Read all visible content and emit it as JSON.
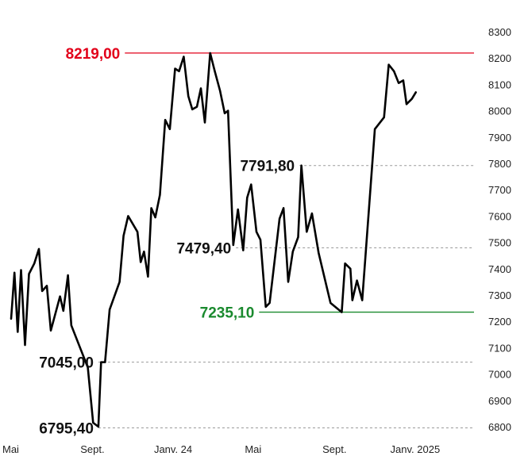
{
  "chart_data": {
    "type": "line",
    "title": "",
    "xlabel": "",
    "ylabel": "",
    "ylim": [
      6800,
      8300
    ],
    "xlim": [
      "2023-05-01",
      "2025-03-31"
    ],
    "y_ticks": [
      8300,
      8200,
      8100,
      8000,
      7900,
      7800,
      7700,
      7600,
      7500,
      7400,
      7300,
      7200,
      7100,
      7000,
      6900,
      6800
    ],
    "y_axis_position": "right",
    "x_ticks": [
      {
        "date": "2023-05-01",
        "label": "Mai"
      },
      {
        "date": "2023-09-01",
        "label": "Sept."
      },
      {
        "date": "2024-01-01",
        "label": "Janv. 24"
      },
      {
        "date": "2024-05-01",
        "label": "Mai"
      },
      {
        "date": "2024-09-01",
        "label": "Sept."
      },
      {
        "date": "2025-01-01",
        "label": "Janv. 2025"
      }
    ],
    "grid": false,
    "series": [
      {
        "color": "#000000",
        "points": [
          [
            "2023-05-01",
            7210
          ],
          [
            "2023-05-06",
            7385
          ],
          [
            "2023-05-11",
            7160
          ],
          [
            "2023-05-16",
            7395
          ],
          [
            "2023-05-22",
            7110
          ],
          [
            "2023-05-28",
            7380
          ],
          [
            "2023-06-05",
            7420
          ],
          [
            "2023-06-12",
            7475
          ],
          [
            "2023-06-17",
            7315
          ],
          [
            "2023-06-24",
            7335
          ],
          [
            "2023-06-30",
            7165
          ],
          [
            "2023-07-14",
            7295
          ],
          [
            "2023-07-19",
            7240
          ],
          [
            "2023-07-26",
            7375
          ],
          [
            "2023-07-31",
            7185
          ],
          [
            "2023-08-25",
            7025
          ],
          [
            "2023-09-02",
            6815
          ],
          [
            "2023-09-10",
            6800
          ],
          [
            "2023-09-14",
            7045
          ],
          [
            "2023-09-20",
            7045
          ],
          [
            "2023-09-27",
            7245
          ],
          [
            "2023-10-12",
            7350
          ],
          [
            "2023-10-18",
            7525
          ],
          [
            "2023-10-25",
            7600
          ],
          [
            "2023-11-08",
            7540
          ],
          [
            "2023-11-13",
            7425
          ],
          [
            "2023-11-18",
            7465
          ],
          [
            "2023-11-24",
            7370
          ],
          [
            "2023-11-29",
            7630
          ],
          [
            "2023-12-05",
            7595
          ],
          [
            "2023-12-12",
            7680
          ],
          [
            "2023-12-20",
            7965
          ],
          [
            "2023-12-27",
            7930
          ],
          [
            "2024-01-04",
            8160
          ],
          [
            "2024-01-10",
            8150
          ],
          [
            "2024-01-17",
            8205
          ],
          [
            "2024-01-24",
            8055
          ],
          [
            "2024-01-30",
            8005
          ],
          [
            "2024-02-06",
            8015
          ],
          [
            "2024-02-12",
            8085
          ],
          [
            "2024-02-18",
            7955
          ],
          [
            "2024-02-26",
            8219
          ],
          [
            "2024-03-04",
            8150
          ],
          [
            "2024-03-12",
            8075
          ],
          [
            "2024-03-19",
            7990
          ],
          [
            "2024-03-24",
            8000
          ],
          [
            "2024-04-01",
            7490
          ],
          [
            "2024-04-08",
            7625
          ],
          [
            "2024-04-16",
            7470
          ],
          [
            "2024-04-22",
            7670
          ],
          [
            "2024-04-28",
            7720
          ],
          [
            "2024-05-06",
            7540
          ],
          [
            "2024-05-12",
            7510
          ],
          [
            "2024-05-20",
            7255
          ],
          [
            "2024-05-26",
            7270
          ],
          [
            "2024-06-10",
            7590
          ],
          [
            "2024-06-16",
            7630
          ],
          [
            "2024-06-23",
            7350
          ],
          [
            "2024-06-30",
            7465
          ],
          [
            "2024-07-08",
            7520
          ],
          [
            "2024-07-13",
            7792
          ],
          [
            "2024-07-21",
            7540
          ],
          [
            "2024-07-29",
            7610
          ],
          [
            "2024-08-08",
            7460
          ],
          [
            "2024-08-26",
            7270
          ],
          [
            "2024-09-12",
            7235
          ],
          [
            "2024-09-17",
            7420
          ],
          [
            "2024-09-25",
            7400
          ],
          [
            "2024-09-28",
            7280
          ],
          [
            "2024-10-05",
            7355
          ],
          [
            "2024-10-13",
            7280
          ],
          [
            "2024-11-01",
            7930
          ],
          [
            "2024-11-15",
            7975
          ],
          [
            "2024-11-22",
            8175
          ],
          [
            "2024-11-30",
            8150
          ],
          [
            "2024-12-07",
            8105
          ],
          [
            "2024-12-14",
            8115
          ],
          [
            "2024-12-19",
            8025
          ],
          [
            "2024-12-27",
            8045
          ],
          [
            "2025-01-02",
            8070
          ]
        ]
      }
    ],
    "annotations": [
      {
        "label": "8219,00",
        "value": 8219.0,
        "color": "#e2001a",
        "line_style": "solid",
        "line_from": "2023-10-20",
        "line_to": "2025-03-31"
      },
      {
        "label": "7791,80",
        "value": 7791.8,
        "color": "#111111",
        "line_style": "dashed",
        "line_from": "2024-07-10",
        "line_to": "2025-03-31"
      },
      {
        "label": "7479,40",
        "value": 7479.4,
        "color": "#111111",
        "line_style": "dashed",
        "line_from": "2024-04-05",
        "line_to": "2025-03-31"
      },
      {
        "label": "7235,10",
        "value": 7235.1,
        "color": "#1a8a2e",
        "line_style": "solid",
        "line_from": "2024-05-10",
        "line_to": "2025-03-31"
      },
      {
        "label": "7045,00",
        "value": 7045.0,
        "color": "#111111",
        "line_style": "dashed",
        "line_from": "2023-09-10",
        "line_to": "2025-03-31"
      },
      {
        "label": "6795,40",
        "value": 6795.4,
        "color": "#111111",
        "line_style": "dashed",
        "line_from": "2023-09-10",
        "line_to": "2025-03-31"
      }
    ]
  }
}
